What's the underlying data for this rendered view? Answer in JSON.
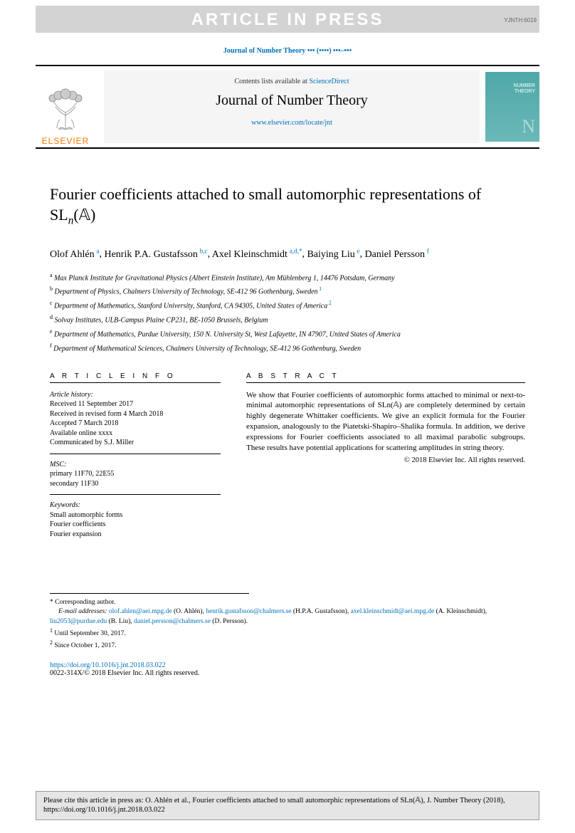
{
  "press_banner": "ARTICLE IN PRESS",
  "yjnth": "YJNTH:6019",
  "journal_header_link": "Journal of Number Theory ••• (••••) •••–•••",
  "header": {
    "contents_prefix": "Contents lists available at ",
    "sciencedirect": "ScienceDirect",
    "journal_name": "Journal of Number Theory",
    "locate": "www.elsevier.com/locate/jnt",
    "elsevier": "ELSEVIER",
    "cover_title1": "NUMBER",
    "cover_title2": "THEORY"
  },
  "title": "Fourier coefficients attached to small automorphic representations of SLn(𝔸)",
  "authors_html": "Olof Ahlén|a|, Henrik P.A. Gustafsson|b,c|, Axel Kleinschmidt|a,d,*|, Baiying Liu|e|, Daniel Persson|f|",
  "authors": [
    {
      "name": "Olof Ahlén",
      "sup": "a"
    },
    {
      "name": "Henrik P.A. Gustafsson",
      "sup": "b,c"
    },
    {
      "name": "Axel Kleinschmidt",
      "sup": "a,d,*"
    },
    {
      "name": "Baiying Liu",
      "sup": "e"
    },
    {
      "name": "Daniel Persson",
      "sup": "f"
    }
  ],
  "affiliations": [
    {
      "sup": "a",
      "text": "Max Planck Institute for Gravitational Physics (Albert Einstein Institute), Am Mühlenberg 1, 14476 Potsdam, Germany"
    },
    {
      "sup": "b",
      "text": "Department of Physics, Chalmers University of Technology, SE-412 96 Gothenburg, Sweden",
      "fn": "1"
    },
    {
      "sup": "c",
      "text": "Department of Mathematics, Stanford University, Stanford, CA 94305, United States of America",
      "fn": "2"
    },
    {
      "sup": "d",
      "text": "Solvay Institutes, ULB-Campus Plaine CP231, BE-1050 Brussels, Belgium"
    },
    {
      "sup": "e",
      "text": "Department of Mathematics, Purdue University, 150 N. University St, West Lafayette, IN 47907, United States of America"
    },
    {
      "sup": "f",
      "text": "Department of Mathematical Sciences, Chalmers University of Technology, SE-412 96 Gothenburg, Sweden"
    }
  ],
  "article_info_heading": "A R T I C L E   I N F O",
  "abstract_heading": "A B S T R A C T",
  "history": {
    "label": "Article history:",
    "received": "Received 11 September 2017",
    "revised": "Received in revised form 4 March 2018",
    "accepted": "Accepted 7 March 2018",
    "online": "Available online xxxx",
    "communicated": "Communicated by S.J. Miller"
  },
  "msc": {
    "label": "MSC:",
    "primary": "primary 11F70, 22E55",
    "secondary": "secondary 11F30"
  },
  "keywords": {
    "label": "Keywords:",
    "k1": "Small automorphic forms",
    "k2": "Fourier coefficients",
    "k3": "Fourier expansion"
  },
  "abstract": "We show that Fourier coefficients of automorphic forms attached to minimal or next-to-minimal automorphic representations of SLn(𝔸) are completely determined by certain highly degenerate Whittaker coefficients. We give an explicit formula for the Fourier expansion, analogously to the Piatetski-Shapiro–Shalika formula. In addition, we derive expressions for Fourier coefficients associated to all maximal parabolic subgroups. These results have potential applications for scattering amplitudes in string theory.",
  "copyright": "© 2018 Elsevier Inc. All rights reserved.",
  "footnotes": {
    "corresponding": "* Corresponding author.",
    "email_label": "E-mail addresses:",
    "emails": [
      {
        "addr": "olof.ahlen@aei.mpg.de",
        "who": "(O. Ahlén)"
      },
      {
        "addr": "henrik.gustafsson@chalmers.se",
        "who": "(H.P.A. Gustafsson)"
      },
      {
        "addr": "axel.kleinschmidt@aei.mpg.de",
        "who": "(A. Kleinschmidt)"
      },
      {
        "addr": "liu2053@purdue.edu",
        "who": "(B. Liu)"
      },
      {
        "addr": "daniel.persson@chalmers.se",
        "who": "(D. Persson)."
      }
    ],
    "fn1": "Until September 30, 2017.",
    "fn2": "Since October 1, 2017."
  },
  "doi": "https://doi.org/10.1016/j.jnt.2018.03.022",
  "rights": "0022-314X/© 2018 Elsevier Inc. All rights reserved.",
  "cite_box": "Please cite this article in press as: O. Ahlén et al., Fourier coefficients attached to small automorphic representations of SLn(𝔸), J. Number Theory (2018), https://doi.org/10.1016/j.jnt.2018.03.022"
}
